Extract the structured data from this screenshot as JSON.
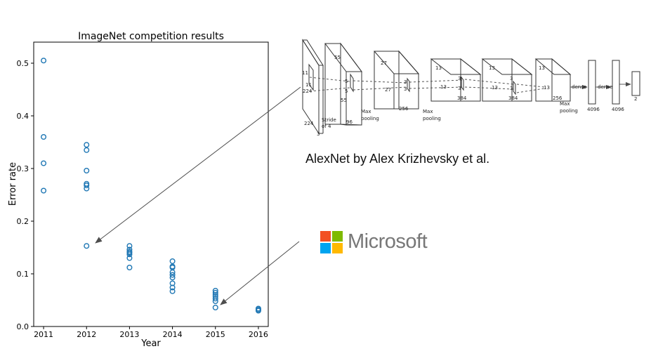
{
  "chart_data": {
    "type": "scatter",
    "title": "ImageNet competition results",
    "xlabel": "Year",
    "ylabel": "Error rate",
    "xlim": [
      2010.77,
      2016.23
    ],
    "ylim": [
      0.0,
      0.54
    ],
    "xticks": [
      "2011",
      "2012",
      "2013",
      "2014",
      "2015",
      "2016"
    ],
    "yticks": [
      "0.0",
      "0.1",
      "0.2",
      "0.3",
      "0.4",
      "0.5"
    ],
    "grid": false,
    "marker_color": "#1f77b4",
    "points": [
      [
        2011,
        0.505
      ],
      [
        2011,
        0.36
      ],
      [
        2011,
        0.31
      ],
      [
        2011,
        0.258
      ],
      [
        2012,
        0.345
      ],
      [
        2012,
        0.335
      ],
      [
        2012,
        0.296
      ],
      [
        2012,
        0.271
      ],
      [
        2012,
        0.268
      ],
      [
        2012,
        0.262
      ],
      [
        2012,
        0.153
      ],
      [
        2013,
        0.153
      ],
      [
        2013,
        0.146
      ],
      [
        2013,
        0.142
      ],
      [
        2013,
        0.14
      ],
      [
        2013,
        0.137
      ],
      [
        2013,
        0.13
      ],
      [
        2013,
        0.112
      ],
      [
        2014,
        0.124
      ],
      [
        2014,
        0.114
      ],
      [
        2014,
        0.112
      ],
      [
        2014,
        0.103
      ],
      [
        2014,
        0.098
      ],
      [
        2014,
        0.093
      ],
      [
        2014,
        0.082
      ],
      [
        2014,
        0.074
      ],
      [
        2014,
        0.067
      ],
      [
        2015,
        0.068
      ],
      [
        2015,
        0.064
      ],
      [
        2015,
        0.06
      ],
      [
        2015,
        0.057
      ],
      [
        2015,
        0.053
      ],
      [
        2015,
        0.048
      ],
      [
        2015,
        0.036
      ],
      [
        2016,
        0.034
      ],
      [
        2016,
        0.032
      ],
      [
        2016,
        0.03
      ]
    ]
  },
  "diagram": {
    "labels": [
      "224",
      "224",
      "11",
      "11",
      "3",
      "Stride",
      "of 4",
      "55",
      "55",
      "5",
      "5",
      "96",
      "Max",
      "pooling",
      "27",
      "27",
      "256",
      "3",
      "3",
      "Max",
      "pooling",
      "13",
      "13",
      "384",
      "3",
      "3",
      "13",
      "13",
      "384",
      "3",
      "3",
      "13",
      "13",
      "256",
      "Max",
      "pooling",
      "dense",
      "dense",
      "4096",
      "4096",
      "2"
    ]
  },
  "caption": "AlexNet by Alex Krizhevsky et al.",
  "logo": {
    "text": "Microsoft",
    "colors": [
      "#f25022",
      "#7fba00",
      "#00a4ef",
      "#ffb900"
    ]
  },
  "arrow_color": "#4d4d4d"
}
